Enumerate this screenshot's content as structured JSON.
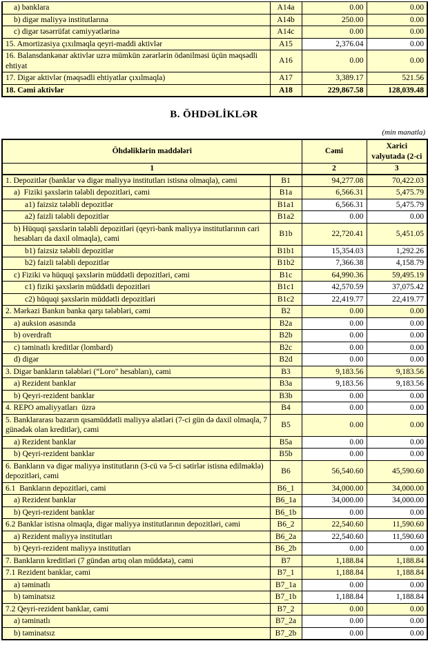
{
  "colors": {
    "cell_yellow": "#FFFFCC",
    "cell_white": "#FFFFFF",
    "border": "#000000",
    "page_bg": "#FFFFFF",
    "text": "#000000"
  },
  "section_a": {
    "rows": [
      {
        "label": "a) banklara",
        "code": "A14a",
        "total": "0.00",
        "foreign": "0.00",
        "indent": 1,
        "white": false,
        "bold": false
      },
      {
        "label": "b) digər maliyyə institutlarına",
        "code": "A14b",
        "total": "250.00",
        "foreign": "0.00",
        "indent": 1,
        "white": false,
        "bold": false
      },
      {
        "label": "c) digər təsərrüfat cəmiyyətlərinə",
        "code": "A14c",
        "total": "0.00",
        "foreign": "0.00",
        "indent": 1,
        "white": false,
        "bold": false
      },
      {
        "label": "15. Amortizasiya çıxılmaqla qeyri-maddi aktivlər",
        "code": "A15",
        "total": "2,376.04",
        "foreign": "0.00",
        "indent": 0,
        "white": true,
        "bold": false
      },
      {
        "label": "16. Balansdankənar aktivlər uzrə mümkün zərərlərin ödənilməsi üçün məqsədli ehtiyat",
        "code": "A16",
        "total": "0.00",
        "foreign": "0.00",
        "indent": 0,
        "white": false,
        "bold": false
      },
      {
        "label": "17. Digər aktivlər (məqsədli ehtiyatlar çıxılmaqla)",
        "code": "A17",
        "total": "3,389.17",
        "foreign": "521.56",
        "indent": 0,
        "white": false,
        "bold": false
      },
      {
        "label": "18. Cəmi aktivlər",
        "code": "A18",
        "total": "229,867.58",
        "foreign": "128,039.48",
        "indent": 0,
        "white": false,
        "bold": true
      }
    ]
  },
  "section_b": {
    "title": "B. ÖHDƏLİKLƏR",
    "unit_note": "(min manatla)",
    "header": {
      "items_label": "Öhdəliklərin maddələri",
      "total_label": "Cəmi",
      "foreign_label": "Xarici valyutada (2-ci",
      "col_numbers": [
        "1",
        "2",
        "3"
      ]
    },
    "rows": [
      {
        "label": "1. Depozitlər (banklar və digər maliyyə institutları istisna olmaqla), cəmi",
        "code": "B1",
        "total": "94,277.08",
        "foreign": "70,422.03",
        "indent": 0,
        "white": false,
        "bold": false
      },
      {
        "label": "a)  Fiziki şəxslərin tələbli depozitləri, cəmi",
        "code": "B1a",
        "total": "6,566.31",
        "foreign": "5,475.79",
        "indent": 1,
        "white": false,
        "bold": false
      },
      {
        "label": "a1) faizsiz tələbli depozitlər",
        "code": "B1a1",
        "total": "6,566.31",
        "foreign": "5,475.79",
        "indent": 2,
        "white": true,
        "bold": false
      },
      {
        "label": "a2) faizli tələbli depozitlər",
        "code": "B1a2",
        "total": "0.00",
        "foreign": "0.00",
        "indent": 2,
        "white": true,
        "bold": false
      },
      {
        "label": "b) Hüquqi şəxslərin tələbli depozitləri (qeyri-bank maliyyə institutlarının cari hesabları da daxil olmaqla), cəmi",
        "code": "B1b",
        "total": "22,720.41",
        "foreign": "5,451.05",
        "indent": 1,
        "white": false,
        "bold": false
      },
      {
        "label": "b1) faizsiz tələbli depozitlər",
        "code": "B1b1",
        "total": "15,354.03",
        "foreign": "1,292.26",
        "indent": 2,
        "white": true,
        "bold": false
      },
      {
        "label": "b2) faizli tələbli depozitlər",
        "code": "B1b2",
        "total": "7,366.38",
        "foreign": "4,158.79",
        "indent": 2,
        "white": true,
        "bold": false
      },
      {
        "label": "c) Fiziki və hüquqi şəxslərin müddətli depozitləri, cəmi",
        "code": "B1c",
        "total": "64,990.36",
        "foreign": "59,495.19",
        "indent": 1,
        "white": false,
        "bold": false
      },
      {
        "label": "c1) fiziki şəxslərin müddətli depozitləri",
        "code": "B1c1",
        "total": "42,570.59",
        "foreign": "37,075.42",
        "indent": 2,
        "white": true,
        "bold": false
      },
      {
        "label": "c2) hüquqi şəxslərin müddətli depozitləri",
        "code": "B1c2",
        "total": "22,419.77",
        "foreign": "22,419.77",
        "indent": 2,
        "white": true,
        "bold": false
      },
      {
        "label": "2. Mərkəzi Bankın banka qarşı tələbləri, cəmi",
        "code": "B2",
        "total": "0.00",
        "foreign": "0.00",
        "indent": 0,
        "white": false,
        "bold": false
      },
      {
        "label": "a) auksion əsasında",
        "code": "B2a",
        "total": "0.00",
        "foreign": "0.00",
        "indent": 1,
        "white": true,
        "bold": false
      },
      {
        "label": "b) overdraft",
        "code": "B2b",
        "total": "0.00",
        "foreign": "0.00",
        "indent": 1,
        "white": true,
        "bold": false
      },
      {
        "label": "c) təminatlı kreditlər (lombard)",
        "code": "B2c",
        "total": "0.00",
        "foreign": "0.00",
        "indent": 1,
        "white": true,
        "bold": false
      },
      {
        "label": "d) digər",
        "code": "B2d",
        "total": "0.00",
        "foreign": "0.00",
        "indent": 1,
        "white": true,
        "bold": false
      },
      {
        "label": "3. Digər bankların tələbləri (“Loro\" hesabları), cəmi",
        "code": "B3",
        "total": "9,183.56",
        "foreign": "9,183.56",
        "indent": 0,
        "white": false,
        "bold": false
      },
      {
        "label": "a) Rezident banklar",
        "code": "B3a",
        "total": "9,183.56",
        "foreign": "9,183.56",
        "indent": 1,
        "white": true,
        "bold": false
      },
      {
        "label": "b) Qeyri-rezident banklar",
        "code": "B3b",
        "total": "0.00",
        "foreign": "0.00",
        "indent": 1,
        "white": true,
        "bold": false
      },
      {
        "label": "4. REPO əməliyyatları  üzrə",
        "code": "B4",
        "total": "0.00",
        "foreign": "0.00",
        "indent": 0,
        "white": true,
        "bold": false
      },
      {
        "label": "5. Banklararası bazarın qısamüddətli maliyyə alətləri (7-ci gün də daxil olmaqla, 7 günədək olan kreditlər), cəmi",
        "code": "B5",
        "total": "0.00",
        "foreign": "0.00",
        "indent": 0,
        "white": false,
        "bold": false
      },
      {
        "label": "a) Rezident banklar",
        "code": "B5a",
        "total": "0.00",
        "foreign": "0.00",
        "indent": 1,
        "white": true,
        "bold": false
      },
      {
        "label": "b) Qeyri-rezident banklar",
        "code": "B5b",
        "total": "0.00",
        "foreign": "0.00",
        "indent": 1,
        "white": true,
        "bold": false
      },
      {
        "label": "6. Bankların və digər maliyyə institutların (3-cü və 5-ci sətirlər istisna edilməklə) depozitləri, cəmi",
        "code": "B6",
        "total": "56,540.60",
        "foreign": "45,590.60",
        "indent": 0,
        "white": false,
        "bold": false
      },
      {
        "label": "6.1  Bankların depozitləri, cəmi",
        "code": "B6_1",
        "total": "34,000.00",
        "foreign": "34,000.00",
        "indent": 0,
        "white": false,
        "bold": false
      },
      {
        "label": "a) Rezident banklar",
        "code": "B6_1a",
        "total": "34,000.00",
        "foreign": "34,000.00",
        "indent": 1,
        "white": true,
        "bold": false
      },
      {
        "label": "b) Qeyri-rezident banklar",
        "code": "B6_1b",
        "total": "0.00",
        "foreign": "0.00",
        "indent": 1,
        "white": true,
        "bold": false
      },
      {
        "label": "6.2 Banklar istisna olmaqla, digər maliyyə institutlarının depozitləri, cəmi",
        "code": "B6_2",
        "total": "22,540.60",
        "foreign": "11,590.60",
        "indent": 0,
        "white": false,
        "bold": false
      },
      {
        "label": "a) Rezident maliyyə institutları",
        "code": "B6_2a",
        "total": "22,540.60",
        "foreign": "11,590.60",
        "indent": 1,
        "white": true,
        "bold": false
      },
      {
        "label": "b) Qeyri-rezident maliyyə institutları",
        "code": "B6_2b",
        "total": "0.00",
        "foreign": "0.00",
        "indent": 1,
        "white": true,
        "bold": false
      },
      {
        "label": "7. Bankların kreditləri (7 gündən artıq olan müddətə), cəmi",
        "code": "B7",
        "total": "1,188.84",
        "foreign": "1,188.84",
        "indent": 0,
        "white": false,
        "bold": false
      },
      {
        "label": "7.1 Rezident banklar, cəmi",
        "code": "B7_1",
        "total": "1,188.84",
        "foreign": "1,188.84",
        "indent": 0,
        "white": false,
        "bold": false
      },
      {
        "label": "a) təminatlı",
        "code": "B7_1a",
        "total": "0.00",
        "foreign": "0.00",
        "indent": 1,
        "white": true,
        "bold": false
      },
      {
        "label": "b) təminatsız",
        "code": "B7_1b",
        "total": "1,188.84",
        "foreign": "1,188.84",
        "indent": 1,
        "white": true,
        "bold": false
      },
      {
        "label": "7.2 Qeyri-rezident banklar, cəmi",
        "code": "B7_2",
        "total": "0.00",
        "foreign": "0.00",
        "indent": 0,
        "white": false,
        "bold": false
      },
      {
        "label": "a) təminatlı",
        "code": "B7_2a",
        "total": "0.00",
        "foreign": "0.00",
        "indent": 1,
        "white": true,
        "bold": false
      },
      {
        "label": "b) təminatsız",
        "code": "B7_2b",
        "total": "0.00",
        "foreign": "0.00",
        "indent": 1,
        "white": true,
        "bold": false
      }
    ]
  }
}
